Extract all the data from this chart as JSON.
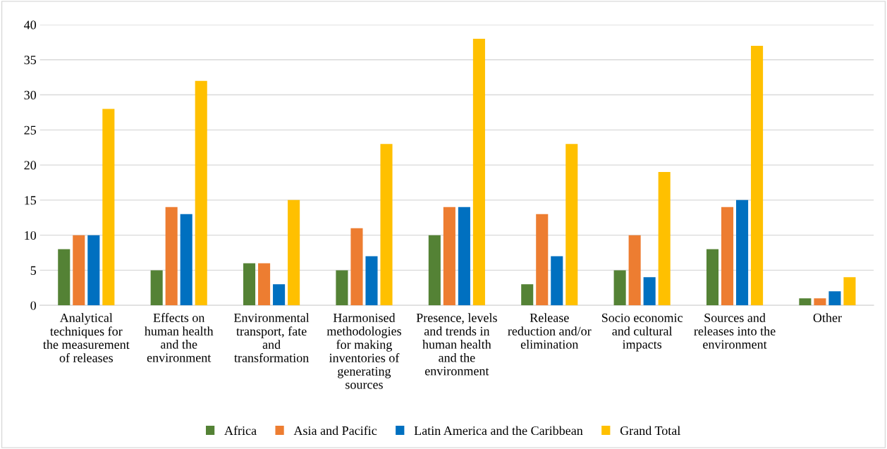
{
  "chart_data": {
    "type": "bar",
    "categories": [
      "Analytical\ntechniques for\nthe measurement\nof releases",
      "Effects on\nhuman health\nand the\nenvironment",
      "Environmental\ntransport, fate\nand\ntransformation",
      "Harmonised\nmethodologies\nfor making\ninventories of\ngenerating\nsources",
      "Presence, levels\nand trends in\nhuman health\nand the\nenvironment",
      "Release\nreduction and/or\nelimination",
      "Socio economic\nand cultural\nimpacts",
      "Sources and\nreleases into the\nenvironment",
      "Other"
    ],
    "series": [
      {
        "name": "Africa",
        "color": "#548235",
        "values": [
          8,
          5,
          6,
          5,
          10,
          3,
          5,
          8,
          1
        ]
      },
      {
        "name": "Asia and Pacific",
        "color": "#ed7d31",
        "values": [
          10,
          14,
          6,
          11,
          14,
          13,
          10,
          14,
          1
        ]
      },
      {
        "name": "Latin America and the Caribbean",
        "color": "#0070c0",
        "values": [
          10,
          13,
          3,
          7,
          14,
          7,
          4,
          15,
          2
        ]
      },
      {
        "name": "Grand Total",
        "color": "#ffc000",
        "values": [
          28,
          32,
          15,
          23,
          38,
          23,
          19,
          37,
          4
        ]
      }
    ],
    "ylim": [
      0,
      40
    ],
    "yticks": [
      0,
      5,
      10,
      15,
      20,
      25,
      30,
      35,
      40
    ],
    "grid": "y",
    "legend": "bottom"
  }
}
